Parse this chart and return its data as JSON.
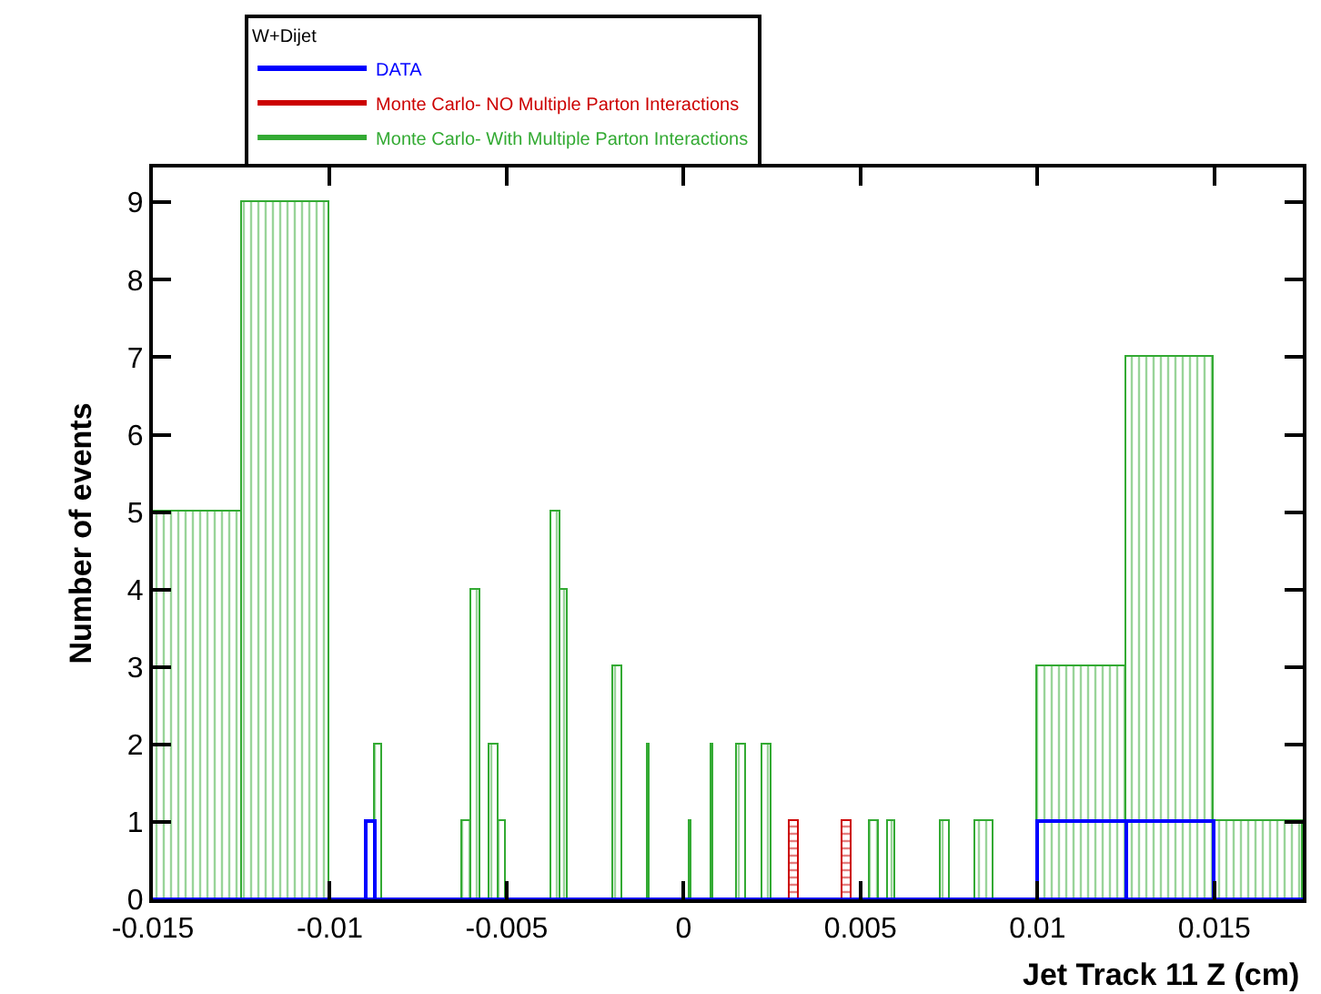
{
  "chart_data": {
    "type": "histogram",
    "xlabel": "Jet Track 11 Z (cm)",
    "ylabel": "Number of events",
    "legend_title": "W+Dijet",
    "legend": "top",
    "xlim": [
      -0.015,
      0.0175
    ],
    "xticks": [
      -0.015,
      -0.01,
      -0.005,
      0,
      0.005,
      0.01,
      0.015
    ],
    "ylim": [
      0,
      9.45
    ],
    "yticks": [
      0,
      1,
      2,
      3,
      4,
      5,
      6,
      7,
      8,
      9
    ],
    "bins": [
      -0.015,
      -0.0125,
      -0.01,
      -0.009,
      -0.00875,
      -0.0085,
      -0.00625,
      -0.006,
      -0.00575,
      -0.0055,
      -0.00525,
      -0.005,
      -0.00375,
      -0.0035,
      -0.00325,
      -0.002,
      -0.00175,
      -0.001,
      -0.00095,
      0.00015,
      0.0002,
      0.0008,
      0.00085,
      0.0015,
      0.00175,
      0.00225,
      0.0025,
      0.003,
      0.00325,
      0.0045,
      0.00475,
      0.00525,
      0.0055,
      0.00575,
      0.006,
      0.00725,
      0.0075,
      0.00825,
      0.00875,
      0.01,
      0.0125,
      0.015,
      0.0175
    ],
    "series": [
      {
        "name": "DATA",
        "color": "#0000ff",
        "values": [
          0,
          0,
          0,
          1,
          0,
          0,
          0,
          0,
          0,
          0,
          0,
          0,
          0,
          0,
          0,
          0,
          0,
          0,
          0,
          0,
          0,
          0,
          0,
          0,
          0,
          0,
          0,
          0,
          0,
          0,
          0,
          0,
          0,
          0,
          0,
          0,
          0,
          0,
          0,
          1,
          1,
          0
        ]
      },
      {
        "name": "Monte Carlo- NO Multiple Parton Interactions",
        "color": "#cc0000",
        "values": [
          0,
          0,
          0,
          0,
          0,
          0,
          0,
          0,
          0,
          0,
          0,
          0,
          0,
          0,
          0,
          0,
          0,
          0,
          0,
          0,
          0,
          0,
          0,
          0,
          0,
          0,
          0,
          1,
          0,
          1,
          0,
          0,
          0,
          0,
          0,
          0,
          0,
          0,
          0,
          0,
          0,
          0
        ]
      },
      {
        "name": "Monte Carlo- With Multiple Parton Interactions",
        "color": "#33aa33",
        "values": [
          5,
          9,
          0,
          0,
          2,
          0,
          1,
          4,
          0,
          2,
          1,
          0,
          5,
          4,
          0,
          3,
          0,
          2,
          0,
          1,
          0,
          2,
          0,
          2,
          0,
          2,
          0,
          0,
          0,
          0,
          0,
          1,
          0,
          1,
          0,
          1,
          0,
          1,
          0,
          3,
          7,
          1
        ]
      }
    ]
  }
}
